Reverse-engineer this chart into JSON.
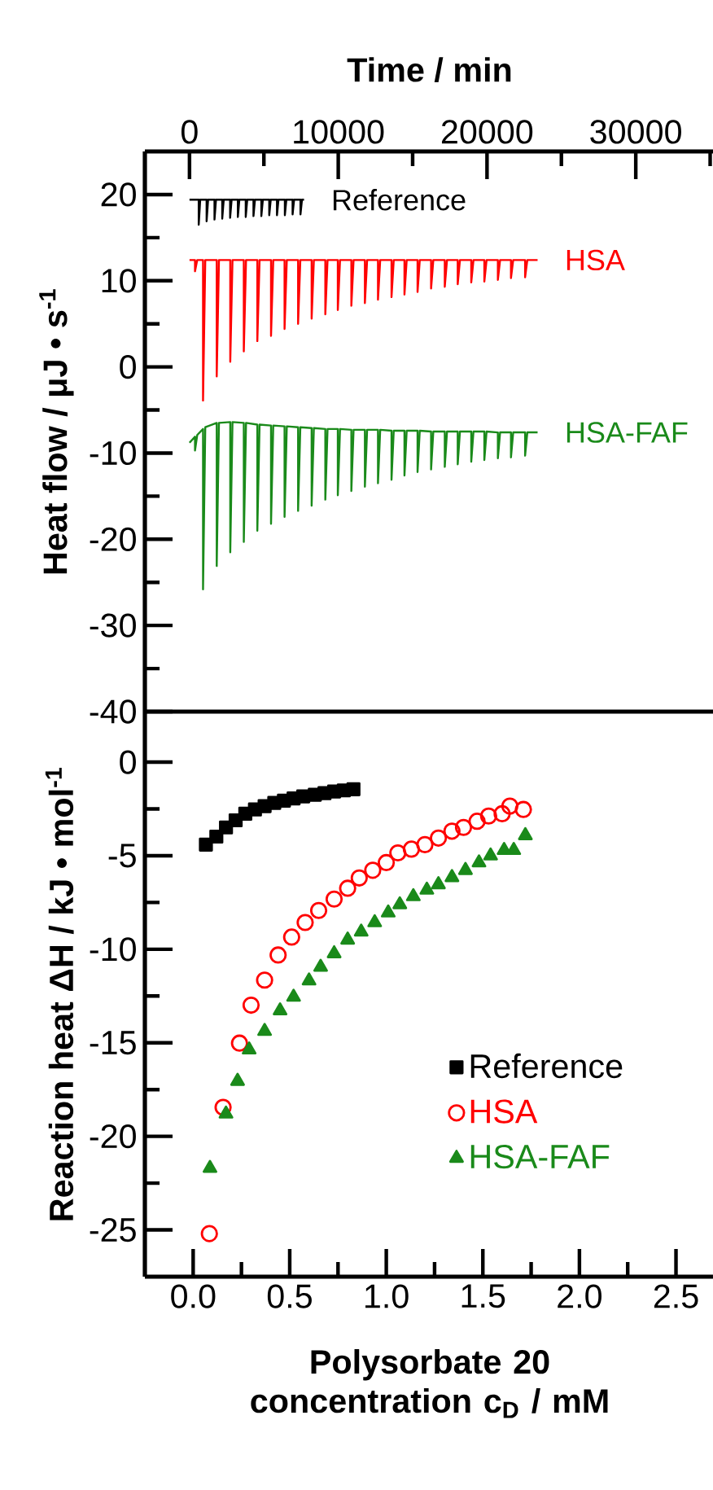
{
  "chart_data": [
    {
      "type": "line",
      "xlabel": "Time / min",
      "ylabel": "Heat flow / μJ • s$^{-1}$",
      "xlim": [
        -3000,
        35300
      ],
      "ylim": [
        -40,
        25
      ],
      "xticks": [
        0,
        {
          "value": 5000,
          "label": null
        },
        10000,
        {
          "value": 15000,
          "label": null
        },
        20000,
        {
          "value": 25000,
          "label": null
        },
        30000,
        {
          "value": 35000,
          "label": null
        }
      ],
      "yticks": [
        -40,
        {
          "value": -35,
          "label": null
        },
        -30,
        {
          "value": -25,
          "label": null
        },
        -20,
        {
          "value": -15,
          "label": null
        },
        -10,
        {
          "value": -5,
          "label": null
        },
        0,
        {
          "value": 5,
          "label": null
        },
        10,
        {
          "value": 15,
          "label": null
        },
        20
      ],
      "series": [
        {
          "name": "Reference",
          "color": "#000000",
          "x": [
            0,
            620,
            620,
            720,
            1150,
            1150,
            1250,
            1680,
            1680,
            1780,
            2200,
            2200,
            2300,
            2730,
            2730,
            2830,
            3250,
            3250,
            3350,
            3780,
            3780,
            3880,
            4300,
            4300,
            4400,
            4830,
            4830,
            4930,
            5360,
            5360,
            5460,
            5880,
            5880,
            5980,
            6410,
            6410,
            6510,
            6930,
            6930,
            7030,
            7460,
            7460,
            7560,
            7700
          ],
          "values": [
            19.4,
            19.4,
            16.5,
            19.4,
            19.4,
            16.9,
            19.4,
            19.4,
            17.1,
            19.4,
            19.4,
            17.2,
            19.4,
            19.4,
            17.3,
            19.4,
            19.4,
            17.4,
            19.4,
            19.4,
            17.4,
            19.4,
            19.4,
            17.5,
            19.4,
            19.4,
            17.5,
            19.4,
            19.4,
            17.6,
            19.4,
            19.4,
            17.6,
            19.4,
            19.4,
            17.6,
            19.4,
            19.4,
            17.7,
            19.4,
            19.4,
            17.7,
            19.4,
            19.4
          ]
        },
        {
          "name": "HSA",
          "color": "#ff0000",
          "x": [
            0,
            370,
            370,
            520,
            910,
            910,
            1060,
            1830,
            1830,
            1980,
            2740,
            2740,
            2890,
            3650,
            3650,
            3800,
            4560,
            4560,
            4710,
            5480,
            5480,
            5630,
            6390,
            6390,
            6540,
            7300,
            7300,
            7450,
            8210,
            8210,
            8360,
            9130,
            9130,
            9280,
            9970,
            9970,
            10120,
            10880,
            10880,
            11030,
            11790,
            11790,
            11940,
            12670,
            12670,
            12820,
            13580,
            13580,
            13730,
            14450,
            14450,
            14600,
            15330,
            15330,
            15480,
            16240,
            16240,
            16390,
            17160,
            17160,
            17310,
            18030,
            18030,
            18180,
            18940,
            18940,
            19090,
            19820,
            19820,
            19970,
            20730,
            20730,
            20880,
            21610,
            21610,
            21760,
            22560,
            22560,
            22710,
            23400
          ],
          "values": [
            12.4,
            12.4,
            11.1,
            12.4,
            12.4,
            -3.9,
            12.4,
            12.4,
            -1.1,
            12.4,
            12.4,
            0.6,
            12.4,
            12.4,
            1.8,
            12.4,
            12.4,
            3.0,
            12.4,
            12.4,
            3.6,
            12.4,
            12.4,
            4.4,
            12.4,
            12.4,
            5.0,
            12.4,
            12.4,
            5.6,
            12.4,
            12.4,
            6.1,
            12.4,
            12.4,
            6.6,
            12.4,
            12.4,
            7.1,
            12.4,
            12.4,
            7.4,
            12.4,
            12.4,
            7.8,
            12.4,
            12.4,
            8.1,
            12.4,
            12.4,
            8.4,
            12.4,
            12.4,
            8.7,
            12.4,
            12.4,
            9.1,
            12.4,
            12.4,
            9.3,
            12.4,
            12.4,
            9.6,
            12.4,
            12.4,
            9.8,
            12.4,
            12.4,
            9.9,
            12.4,
            12.4,
            10.1,
            12.4,
            12.4,
            10.3,
            12.4,
            12.4,
            10.4,
            12.4,
            12.4
          ]
        },
        {
          "name": "HSA-FAF",
          "color": "#1a8a1a",
          "x": [
            0,
            370,
            370,
            520,
            910,
            910,
            1060,
            1830,
            1830,
            1980,
            2740,
            2740,
            2890,
            3650,
            3650,
            3800,
            4560,
            4560,
            4710,
            5480,
            5480,
            5630,
            6390,
            6390,
            6540,
            7300,
            7300,
            7450,
            8210,
            8210,
            8360,
            9130,
            9130,
            9280,
            9970,
            9970,
            10120,
            10880,
            10880,
            11030,
            11790,
            11790,
            11940,
            12670,
            12670,
            12820,
            13580,
            13580,
            13730,
            14450,
            14450,
            14600,
            15330,
            15330,
            15480,
            16240,
            16240,
            16390,
            17160,
            17160,
            17310,
            18030,
            18030,
            18180,
            18940,
            18940,
            19090,
            19820,
            19820,
            19970,
            20730,
            20730,
            20880,
            21610,
            21610,
            21760,
            22560,
            22560,
            22710,
            23400
          ],
          "values": [
            -8.8,
            -8.1,
            -9.7,
            -7.9,
            -7.2,
            -25.8,
            -7.0,
            -6.5,
            -23.1,
            -6.5,
            -6.4,
            -21.5,
            -6.4,
            -6.5,
            -20.3,
            -6.5,
            -6.7,
            -19.0,
            -6.7,
            -6.8,
            -18.2,
            -6.8,
            -6.9,
            -17.4,
            -6.9,
            -7.0,
            -16.7,
            -7.0,
            -7.1,
            -16.1,
            -7.1,
            -7.2,
            -15.4,
            -7.2,
            -7.2,
            -14.9,
            -7.2,
            -7.3,
            -14.4,
            -7.3,
            -7.3,
            -13.9,
            -7.3,
            -7.3,
            -13.5,
            -7.3,
            -7.4,
            -13.1,
            -7.4,
            -7.4,
            -12.6,
            -7.4,
            -7.4,
            -12.2,
            -7.4,
            -7.5,
            -11.9,
            -7.5,
            -7.5,
            -11.6,
            -7.5,
            -7.5,
            -11.3,
            -7.5,
            -7.5,
            -11.0,
            -7.5,
            -7.5,
            -10.8,
            -7.5,
            -7.6,
            -10.6,
            -7.6,
            -7.6,
            -10.5,
            -7.6,
            -7.6,
            -10.3,
            -7.6,
            -7.6
          ]
        }
      ]
    },
    {
      "type": "scatter",
      "xlabel": "Polysorbate 20 concentration c$_{D}$ / mM",
      "ylabel": "Reaction heat ΔH / kJ • mol$^{-1}$",
      "xlim": [
        -0.25,
        2.7
      ],
      "ylim": [
        -27.5,
        2.7
      ],
      "xticks": [
        {
          "value": 0,
          "label": "0.0"
        },
        {
          "value": 0.25,
          "label": null
        },
        {
          "value": 0.5,
          "label": "0.5"
        },
        {
          "value": 0.75,
          "label": null
        },
        {
          "value": 1,
          "label": "1.0"
        },
        {
          "value": 1.25,
          "label": null
        },
        {
          "value": 1.5,
          "label": "1.5"
        },
        {
          "value": 1.75,
          "label": null
        },
        {
          "value": 2,
          "label": "2.0"
        },
        {
          "value": 2.25,
          "label": null
        },
        {
          "value": 2.5,
          "label": "2.5"
        }
      ],
      "yticks": [
        -25,
        {
          "value": -22.5,
          "label": null
        },
        -20,
        {
          "value": -17.5,
          "label": null
        },
        -15,
        {
          "value": -12.5,
          "label": null
        },
        -10,
        {
          "value": -7.5,
          "label": null
        },
        -5,
        {
          "value": -2.5,
          "label": null
        },
        0
      ],
      "legend": "bottom right",
      "series": [
        {
          "name": "Reference",
          "color": "#000000",
          "marker": "square",
          "x": [
            0.066,
            0.12,
            0.17,
            0.22,
            0.27,
            0.32,
            0.37,
            0.42,
            0.47,
            0.52,
            0.57,
            0.63,
            0.68,
            0.73,
            0.78,
            0.83
          ],
          "values": [
            -4.41,
            -3.98,
            -3.49,
            -3.11,
            -2.76,
            -2.53,
            -2.35,
            -2.18,
            -2.06,
            -1.94,
            -1.83,
            -1.74,
            -1.66,
            -1.57,
            -1.51,
            -1.45
          ]
        },
        {
          "name": "HSA",
          "color": "#ff0000",
          "marker": "circle",
          "x": [
            0.084,
            0.155,
            0.24,
            0.3,
            0.37,
            0.44,
            0.51,
            0.58,
            0.65,
            0.73,
            0.8,
            0.86,
            0.93,
            1.0,
            1.06,
            1.13,
            1.2,
            1.27,
            1.34,
            1.4,
            1.47,
            1.53,
            1.6,
            1.64,
            1.71
          ],
          "values": [
            -25.2,
            -18.45,
            -15.02,
            -12.99,
            -11.65,
            -10.31,
            -9.35,
            -8.57,
            -7.93,
            -7.32,
            -6.74,
            -6.19,
            -5.78,
            -5.37,
            -4.85,
            -4.65,
            -4.41,
            -4.06,
            -3.69,
            -3.49,
            -3.16,
            -2.88,
            -2.76,
            -2.35,
            -2.53
          ]
        },
        {
          "name": "HSA-FAF",
          "color": "#1a8a1a",
          "marker": "triangle",
          "x": [
            0.087,
            0.17,
            0.23,
            0.29,
            0.37,
            0.45,
            0.52,
            0.6,
            0.66,
            0.73,
            0.8,
            0.87,
            0.94,
            1.01,
            1.07,
            1.14,
            1.21,
            1.27,
            1.34,
            1.41,
            1.48,
            1.54,
            1.61,
            1.66,
            1.72
          ],
          "values": [
            -21.7,
            -18.8,
            -17.05,
            -15.37,
            -14.38,
            -13.28,
            -12.55,
            -11.68,
            -10.95,
            -10.23,
            -9.5,
            -9.07,
            -8.57,
            -8.05,
            -7.61,
            -7.18,
            -6.83,
            -6.54,
            -6.16,
            -5.78,
            -5.37,
            -5.0,
            -4.71,
            -4.71,
            -3.92
          ]
        }
      ]
    }
  ]
}
